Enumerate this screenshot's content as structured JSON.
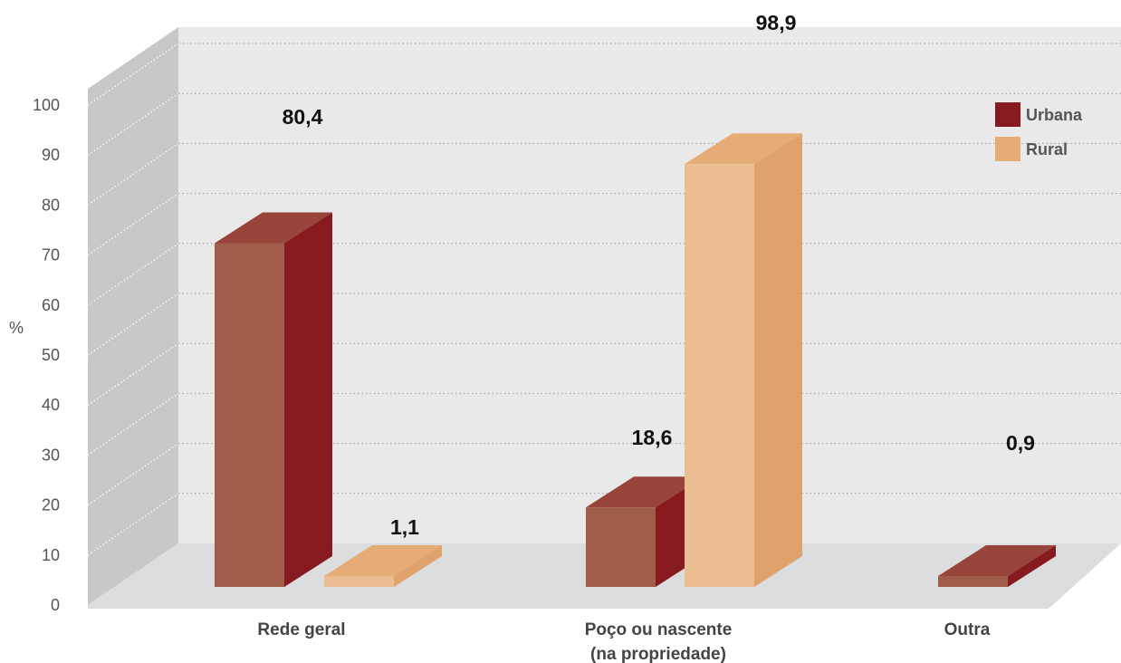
{
  "chart_data": {
    "type": "bar",
    "categories": [
      "Rede geral",
      "Poço ou nascente\n(na propriedade)",
      "Outra"
    ],
    "series": [
      {
        "name": "Urbana",
        "values": [
          80.4,
          18.6,
          0.9
        ],
        "labels": [
          "80,4",
          "18,6",
          "0,9"
        ]
      },
      {
        "name": "Rural",
        "values": [
          1.1,
          98.9,
          null
        ],
        "labels": [
          "1,1",
          "98,9",
          ""
        ]
      }
    ],
    "ylabel": "%",
    "ylim": [
      0,
      100
    ],
    "yticks": [
      0,
      10,
      20,
      30,
      40,
      50,
      60,
      70,
      80,
      90,
      100
    ],
    "grid": true,
    "legend": "top-right",
    "colors": {
      "urbana": {
        "front": "#a05c4b",
        "side": "#861a1e",
        "top": "#98443a"
      },
      "rural": {
        "front": "#ebbd92",
        "side": "#e0a26c",
        "top": "#e6ac76"
      },
      "backwall": "#e9e9ea",
      "leftwall": "#c7c8ca",
      "floor": "#dcdddf"
    }
  }
}
